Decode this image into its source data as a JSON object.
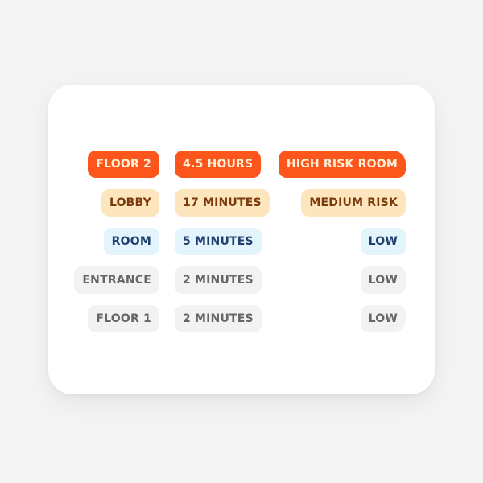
{
  "rows": [
    {
      "location": "FLOOR 2",
      "duration": "4.5 HOURS",
      "risk": "HIGH RISK ROOM",
      "style": "high"
    },
    {
      "location": "LOBBY",
      "duration": "17 MINUTES",
      "risk": "MEDIUM RISK",
      "style": "medium"
    },
    {
      "location": "ROOM",
      "duration": "5 MINUTES",
      "risk": "LOW",
      "style": "low-blue"
    },
    {
      "location": "ENTRANCE",
      "duration": "2 MINUTES",
      "risk": "LOW",
      "style": "neutral"
    },
    {
      "location": "FLOOR 1",
      "duration": "2 MINUTES",
      "risk": "LOW",
      "style": "neutral"
    }
  ],
  "colors": {
    "high": "#fc561c",
    "medium": "#fde5bd",
    "low": "#e3f4fd",
    "neutral": "#f2f2f2"
  }
}
